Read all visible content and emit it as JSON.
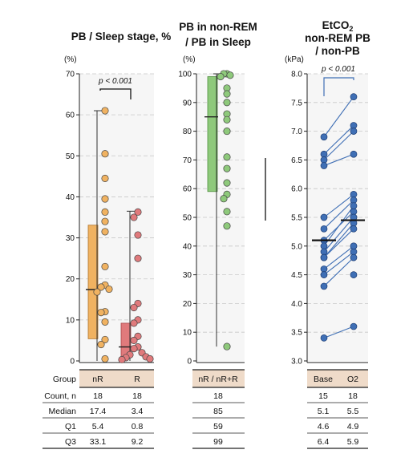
{
  "chart_data": [
    {
      "type": "box-strip",
      "title": "PB / Sleep stage, %",
      "unit": "(%)",
      "ylim": [
        0,
        70
      ],
      "yticks": [
        0,
        10,
        20,
        30,
        40,
        50,
        60,
        70
      ],
      "grid": true,
      "groups": [
        {
          "name": "nR",
          "color": "#f0b261",
          "box": {
            "q1": 5.4,
            "median": 17.4,
            "q3": 33.1,
            "min": 0,
            "max": 61
          },
          "points": [
            61,
            50.5,
            44.5,
            39.5,
            36.3,
            34,
            31.5,
            23,
            18.5,
            18,
            17.5,
            16.8,
            12,
            11.8,
            9.5,
            5.2,
            4,
            0.5
          ]
        },
        {
          "name": "R",
          "color": "#e07a7c",
          "box": {
            "q1": 0.8,
            "median": 3.4,
            "q3": 9.2,
            "min": 0,
            "max": 36.5
          },
          "points": [
            36.3,
            35,
            30.7,
            25,
            14,
            13,
            10,
            9.2,
            6,
            5,
            3.4,
            3,
            2,
            1.5,
            1,
            0.8,
            0.5,
            0.3
          ]
        }
      ],
      "bracket": {
        "label": "p < 0.001"
      }
    },
    {
      "type": "box-strip",
      "title_lines": [
        "PB in non-REM",
        "/ PB in Sleep"
      ],
      "unit": "(%)",
      "ylim": [
        0,
        100
      ],
      "yticks": [
        0,
        10,
        20,
        30,
        40,
        50,
        60,
        70,
        80,
        90,
        100
      ],
      "grid": true,
      "groups": [
        {
          "name": "nR / nR+R",
          "color": "#8ec97b",
          "box": {
            "q1": 59,
            "median": 85,
            "q3": 99,
            "min": 5,
            "max": 100
          },
          "points": [
            100,
            100,
            99.5,
            99,
            95,
            93,
            90,
            86,
            84,
            80,
            71,
            67,
            62,
            58,
            56.5,
            52,
            47,
            5
          ]
        }
      ]
    },
    {
      "type": "paired-dot",
      "title_lines": [
        "EtCO2",
        "non-REM PB",
        "/ non-PB"
      ],
      "unit": "(kPa)",
      "ylim": [
        3.0,
        8.0
      ],
      "yticks": [
        "3.0",
        "3.5",
        "4.0",
        "4.5",
        "5.0",
        "5.5",
        "6.0",
        "6.5",
        "7.0",
        "7.5",
        "8.0"
      ],
      "grid": true,
      "color": "#3f6fb5",
      "categories": [
        "Base",
        "O2"
      ],
      "medians": [
        5.1,
        5.45
      ],
      "pairs": [
        [
          6.9,
          7.6
        ],
        [
          6.6,
          7.1
        ],
        [
          6.5,
          7.0
        ],
        [
          6.4,
          6.6
        ],
        [
          5.5,
          5.9
        ],
        [
          5.3,
          5.8
        ],
        [
          5.1,
          5.6
        ],
        [
          5.0,
          5.7
        ],
        [
          4.9,
          5.5
        ],
        [
          4.8,
          5.4
        ],
        [
          4.8,
          5.3
        ],
        [
          4.6,
          5.0
        ],
        [
          4.5,
          4.9
        ],
        [
          4.3,
          4.8
        ],
        [
          3.4,
          3.6
        ],
        [
          null,
          5.5
        ],
        [
          null,
          5.0
        ],
        [
          null,
          4.5
        ]
      ],
      "bracket": {
        "label": "p < 0.001"
      }
    }
  ],
  "tables": [
    {
      "header": [
        "nR",
        "R"
      ],
      "rows": [
        {
          "label": "Count, n",
          "values": [
            "18",
            "18"
          ]
        },
        {
          "label": "Median",
          "values": [
            "17.4",
            "3.4"
          ]
        },
        {
          "label": "Q1",
          "values": [
            "5.4",
            "0.8"
          ]
        },
        {
          "label": "Q3",
          "values": [
            "33.1",
            "9.2"
          ]
        }
      ]
    },
    {
      "header": [
        "nR / nR+R"
      ],
      "rows": [
        {
          "values": [
            "18"
          ]
        },
        {
          "values": [
            "85"
          ]
        },
        {
          "values": [
            "59"
          ]
        },
        {
          "values": [
            "99"
          ]
        }
      ]
    },
    {
      "header": [
        "Base",
        "O2"
      ],
      "rows": [
        {
          "values": [
            "15",
            "18"
          ]
        },
        {
          "values": [
            "5.1",
            "5.5"
          ]
        },
        {
          "values": [
            "4.6",
            "4.9"
          ]
        },
        {
          "values": [
            "6.4",
            "5.9"
          ]
        }
      ]
    }
  ],
  "group_label": "Group"
}
